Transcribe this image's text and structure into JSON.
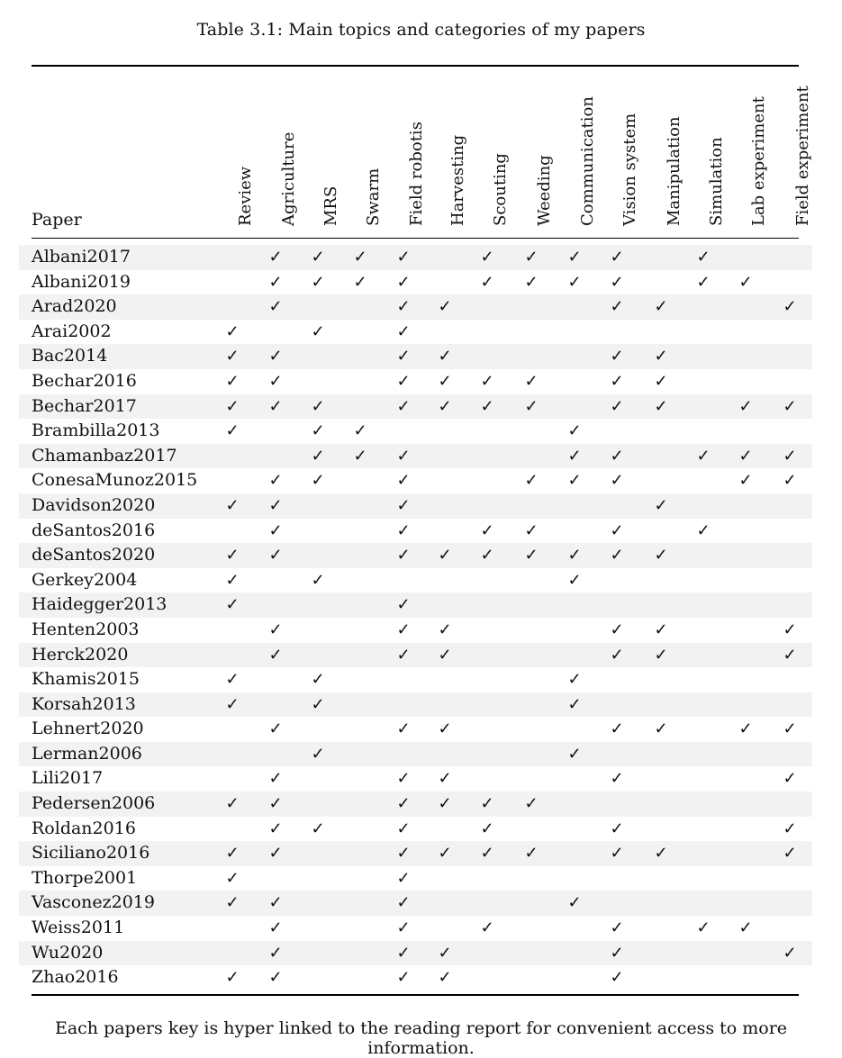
{
  "caption": "Table 3.1: Main topics and categories of my papers",
  "paper_header": "Paper",
  "columns": [
    "Review",
    "Agriculture",
    "MRS",
    "Swarm",
    "Field robotis",
    "Harvesting",
    "Scouting",
    "Weeding",
    "Communication",
    "Vision system",
    "Manipulation",
    "Simulation",
    "Lab experiment",
    "Field experiment"
  ],
  "check_glyph": "✓",
  "rows": [
    {
      "key": "Albani2017",
      "checks": [
        0,
        1,
        1,
        1,
        1,
        0,
        1,
        1,
        1,
        1,
        0,
        1,
        0,
        0
      ]
    },
    {
      "key": "Albani2019",
      "checks": [
        0,
        1,
        1,
        1,
        1,
        0,
        1,
        1,
        1,
        1,
        0,
        1,
        1,
        0
      ]
    },
    {
      "key": "Arad2020",
      "checks": [
        0,
        1,
        0,
        0,
        1,
        1,
        0,
        0,
        0,
        1,
        1,
        0,
        0,
        1
      ]
    },
    {
      "key": "Arai2002",
      "checks": [
        1,
        0,
        1,
        0,
        1,
        0,
        0,
        0,
        0,
        0,
        0,
        0,
        0,
        0
      ]
    },
    {
      "key": "Bac2014",
      "checks": [
        1,
        1,
        0,
        0,
        1,
        1,
        0,
        0,
        0,
        1,
        1,
        0,
        0,
        0
      ]
    },
    {
      "key": "Bechar2016",
      "checks": [
        1,
        1,
        0,
        0,
        1,
        1,
        1,
        1,
        0,
        1,
        1,
        0,
        0,
        0
      ]
    },
    {
      "key": "Bechar2017",
      "checks": [
        1,
        1,
        1,
        0,
        1,
        1,
        1,
        1,
        0,
        1,
        1,
        0,
        1,
        1
      ]
    },
    {
      "key": "Brambilla2013",
      "checks": [
        1,
        0,
        1,
        1,
        0,
        0,
        0,
        0,
        1,
        0,
        0,
        0,
        0,
        0
      ]
    },
    {
      "key": "Chamanbaz2017",
      "checks": [
        0,
        0,
        1,
        1,
        1,
        0,
        0,
        0,
        1,
        1,
        0,
        1,
        1,
        1
      ]
    },
    {
      "key": "ConesaMunoz2015",
      "checks": [
        0,
        1,
        1,
        0,
        1,
        0,
        0,
        1,
        1,
        1,
        0,
        0,
        1,
        1
      ]
    },
    {
      "key": "Davidson2020",
      "checks": [
        1,
        1,
        0,
        0,
        1,
        0,
        0,
        0,
        0,
        0,
        1,
        0,
        0,
        0
      ]
    },
    {
      "key": "deSantos2016",
      "checks": [
        0,
        1,
        0,
        0,
        1,
        0,
        1,
        1,
        0,
        1,
        0,
        1,
        0,
        0
      ]
    },
    {
      "key": "deSantos2020",
      "checks": [
        1,
        1,
        0,
        0,
        1,
        1,
        1,
        1,
        1,
        1,
        1,
        0,
        0,
        0
      ]
    },
    {
      "key": "Gerkey2004",
      "checks": [
        1,
        0,
        1,
        0,
        0,
        0,
        0,
        0,
        1,
        0,
        0,
        0,
        0,
        0
      ]
    },
    {
      "key": "Haidegger2013",
      "checks": [
        1,
        0,
        0,
        0,
        1,
        0,
        0,
        0,
        0,
        0,
        0,
        0,
        0,
        0
      ]
    },
    {
      "key": "Henten2003",
      "checks": [
        0,
        1,
        0,
        0,
        1,
        1,
        0,
        0,
        0,
        1,
        1,
        0,
        0,
        1
      ]
    },
    {
      "key": "Herck2020",
      "checks": [
        0,
        1,
        0,
        0,
        1,
        1,
        0,
        0,
        0,
        1,
        1,
        0,
        0,
        1
      ]
    },
    {
      "key": "Khamis2015",
      "checks": [
        1,
        0,
        1,
        0,
        0,
        0,
        0,
        0,
        1,
        0,
        0,
        0,
        0,
        0
      ]
    },
    {
      "key": "Korsah2013",
      "checks": [
        1,
        0,
        1,
        0,
        0,
        0,
        0,
        0,
        1,
        0,
        0,
        0,
        0,
        0
      ]
    },
    {
      "key": "Lehnert2020",
      "checks": [
        0,
        1,
        0,
        0,
        1,
        1,
        0,
        0,
        0,
        1,
        1,
        0,
        1,
        1
      ]
    },
    {
      "key": "Lerman2006",
      "checks": [
        0,
        0,
        1,
        0,
        0,
        0,
        0,
        0,
        1,
        0,
        0,
        0,
        0,
        0
      ]
    },
    {
      "key": "Lili2017",
      "checks": [
        0,
        1,
        0,
        0,
        1,
        1,
        0,
        0,
        0,
        1,
        0,
        0,
        0,
        1
      ]
    },
    {
      "key": "Pedersen2006",
      "checks": [
        1,
        1,
        0,
        0,
        1,
        1,
        1,
        1,
        0,
        0,
        0,
        0,
        0,
        0
      ]
    },
    {
      "key": "Roldan2016",
      "checks": [
        0,
        1,
        1,
        0,
        1,
        0,
        1,
        0,
        0,
        1,
        0,
        0,
        0,
        1
      ]
    },
    {
      "key": "Siciliano2016",
      "checks": [
        1,
        1,
        0,
        0,
        1,
        1,
        1,
        1,
        0,
        1,
        1,
        0,
        0,
        1
      ]
    },
    {
      "key": "Thorpe2001",
      "checks": [
        1,
        0,
        0,
        0,
        1,
        0,
        0,
        0,
        0,
        0,
        0,
        0,
        0,
        0
      ]
    },
    {
      "key": "Vasconez2019",
      "checks": [
        1,
        1,
        0,
        0,
        1,
        0,
        0,
        0,
        1,
        0,
        0,
        0,
        0,
        0
      ]
    },
    {
      "key": "Weiss2011",
      "checks": [
        0,
        1,
        0,
        0,
        1,
        0,
        1,
        0,
        0,
        1,
        0,
        1,
        1,
        0
      ]
    },
    {
      "key": "Wu2020",
      "checks": [
        0,
        1,
        0,
        0,
        1,
        1,
        0,
        0,
        0,
        1,
        0,
        0,
        0,
        1
      ]
    },
    {
      "key": "Zhao2016",
      "checks": [
        1,
        1,
        0,
        0,
        1,
        1,
        0,
        0,
        0,
        1,
        0,
        0,
        0,
        0
      ]
    }
  ],
  "footnote": "Each papers key is hyper linked to the reading report for convenient access to more information."
}
